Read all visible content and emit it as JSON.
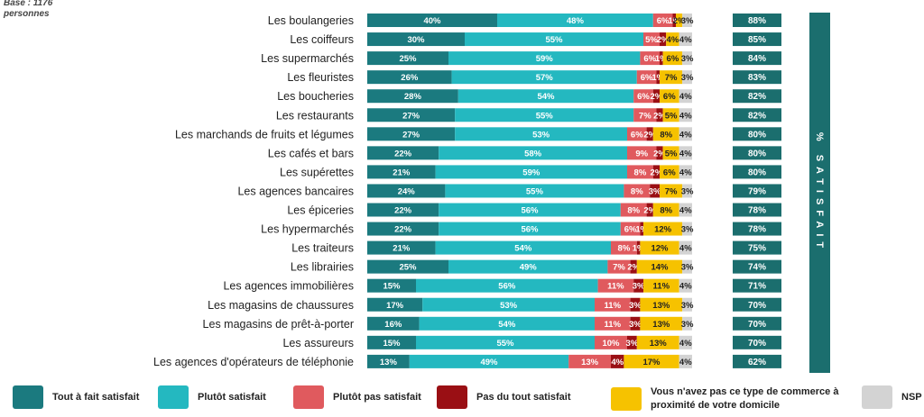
{
  "base_note": "Base : 1176 personnes",
  "satisfait_label": "% SATISFAIT",
  "legend": [
    {
      "label": "Tout à fait satisfait",
      "color": "#1b7a7f"
    },
    {
      "label": "Plutôt satisfait",
      "color": "#24b8c0"
    },
    {
      "label": "Plutôt pas satisfait",
      "color": "#e05a5e"
    },
    {
      "label": "Pas du tout satisfait",
      "color": "#9a0f14"
    },
    {
      "label": "Vous n'avez pas ce type de commerce à proximité de votre domicile",
      "color": "#f6c200"
    },
    {
      "label": "NSP",
      "color": "#d3d3d3"
    }
  ],
  "chart_data": {
    "type": "bar",
    "orientation": "horizontal",
    "stacked": true,
    "categories": [
      "Les boulangeries",
      "Les coiffeurs",
      "Les supermarchés",
      "Les fleuristes",
      "Les boucheries",
      "Les restaurants",
      "Les marchands de fruits et légumes",
      "Les cafés et bars",
      "Les supérettes",
      "Les agences bancaires",
      "Les épiceries",
      "Les hypermarchés",
      "Les traiteurs",
      "Les librairies",
      "Les agences immobilières",
      "Les magasins de chaussures",
      "Les magasins de prêt-à-porter",
      "Les assureurs",
      "Les agences d'opérateurs de téléphonie"
    ],
    "series": [
      {
        "name": "Tout à fait satisfait",
        "values": [
          40,
          30,
          25,
          26,
          28,
          27,
          27,
          22,
          21,
          24,
          22,
          22,
          21,
          25,
          15,
          17,
          16,
          15,
          13
        ]
      },
      {
        "name": "Plutôt satisfait",
        "values": [
          48,
          55,
          59,
          57,
          54,
          55,
          53,
          58,
          59,
          55,
          56,
          56,
          54,
          49,
          56,
          53,
          54,
          55,
          49
        ]
      },
      {
        "name": "Plutôt pas satisfait",
        "values": [
          6,
          5,
          6,
          6,
          6,
          7,
          6,
          9,
          8,
          8,
          8,
          6,
          8,
          7,
          11,
          11,
          11,
          10,
          13
        ]
      },
      {
        "name": "Pas du tout satisfait",
        "values": [
          1,
          2,
          1,
          1,
          2,
          2,
          2,
          2,
          2,
          3,
          2,
          1,
          1,
          2,
          3,
          3,
          3,
          3,
          4
        ]
      },
      {
        "name": "Vous n'avez pas ce type de commerce à proximité de votre domicile",
        "values": [
          2,
          4,
          6,
          7,
          6,
          5,
          8,
          5,
          6,
          7,
          8,
          12,
          12,
          14,
          11,
          13,
          13,
          13,
          17
        ]
      },
      {
        "name": "NSP",
        "values": [
          3,
          4,
          3,
          3,
          4,
          4,
          4,
          4,
          4,
          3,
          4,
          3,
          4,
          3,
          4,
          3,
          3,
          4,
          4
        ]
      }
    ],
    "satisfait_pct": [
      "88%",
      "85%",
      "84%",
      "83%",
      "82%",
      "82%",
      "80%",
      "80%",
      "80%",
      "79%",
      "78%",
      "78%",
      "75%",
      "74%",
      "71%",
      "70%",
      "70%",
      "70%",
      "62%"
    ],
    "value_suffix": "%"
  }
}
